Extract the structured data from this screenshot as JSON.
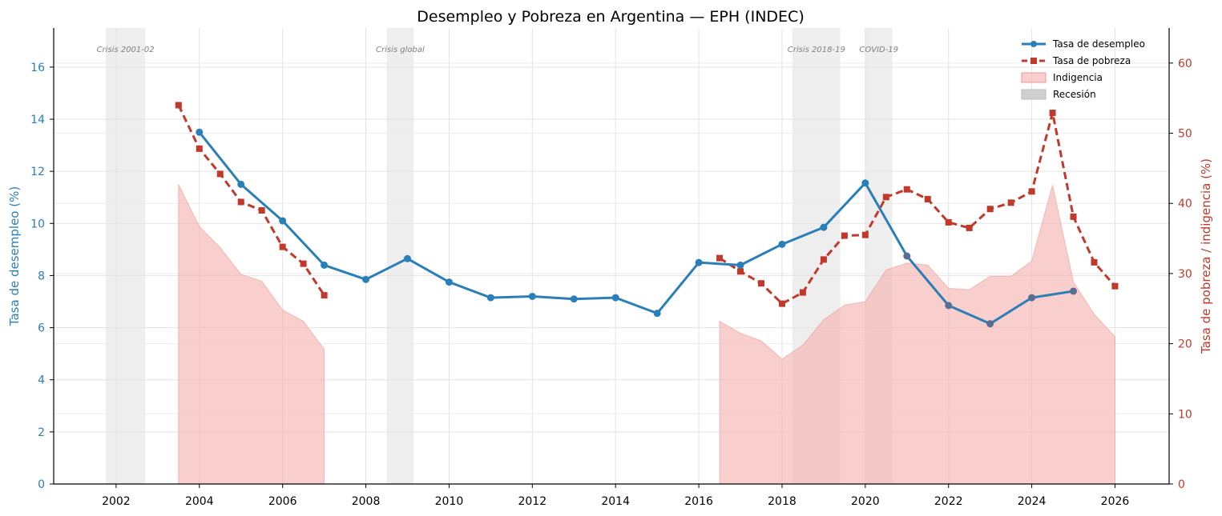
{
  "chart_data": {
    "type": "line",
    "title": "Desempleo y Pobreza en Argentina — EPH (INDEC)",
    "xlabel": "",
    "ylabel_left": "Tasa de desempleo (%)",
    "ylabel_right": "Tasa de pobreza / indigencia (%)",
    "xlim": [
      2000.5,
      2027.3
    ],
    "ylim_left": [
      0,
      17.5
    ],
    "ylim_right": [
      0,
      65
    ],
    "x_ticks": [
      2002,
      2004,
      2006,
      2008,
      2010,
      2012,
      2014,
      2016,
      2018,
      2020,
      2022,
      2024,
      2026
    ],
    "y_ticks_left": [
      0,
      2,
      4,
      6,
      8,
      10,
      12,
      14,
      16
    ],
    "y_ticks_right": [
      0,
      10,
      20,
      30,
      40,
      50,
      60
    ],
    "grid": true,
    "legend_position": "top-right",
    "colors": {
      "unemployment": "#2a7fb8",
      "unemployment_late": "#5a6e94",
      "poverty": "#c0392b",
      "indigence_fill": "#f4b6b1",
      "recession": "#d9d9d9",
      "left_axis": "#2a7fb8",
      "right_axis": "#c0392b"
    },
    "recessions": [
      {
        "label": "Crisis 2001-02",
        "start": 2001.75,
        "end": 2002.7
      },
      {
        "label": "Crisis global",
        "start": 2008.5,
        "end": 2009.15
      },
      {
        "label": "Crisis 2018-19",
        "start": 2018.25,
        "end": 2019.4
      },
      {
        "label": "COVID-19",
        "start": 2020.0,
        "end": 2020.65
      }
    ],
    "series": [
      {
        "name": "Tasa de desempleo",
        "axis": "left",
        "style": "solid-circle",
        "x": [
          2004,
          2005,
          2006,
          2007,
          2008,
          2009,
          2010,
          2011,
          2012,
          2013,
          2014,
          2015,
          2016,
          2017,
          2018,
          2019,
          2020,
          2021,
          2022,
          2023,
          2024,
          2025
        ],
        "y": [
          13.5,
          11.5,
          10.1,
          8.4,
          7.85,
          8.65,
          7.75,
          7.15,
          7.2,
          7.1,
          7.15,
          6.55,
          8.5,
          8.4,
          9.2,
          9.85,
          11.55,
          8.75,
          6.85,
          6.15,
          7.15,
          7.4
        ]
      },
      {
        "name": "Tasa de pobreza",
        "axis": "right",
        "style": "dashed-square",
        "segments": [
          {
            "x": [
              2003.5,
              2004,
              2004.5,
              2005,
              2005.5,
              2006,
              2006.5,
              2007
            ],
            "y": [
              54.0,
              47.8,
              44.2,
              40.2,
              39.0,
              33.8,
              31.4,
              26.9
            ]
          },
          {
            "x": [
              2016.5,
              2017,
              2017.5,
              2018,
              2018.5,
              2019,
              2019.5,
              2020,
              2020.5,
              2021,
              2021.5,
              2022,
              2022.5,
              2023,
              2023.5,
              2024,
              2024.5,
              2025,
              2025.5,
              2026
            ],
            "y": [
              32.2,
              30.3,
              28.6,
              25.7,
              27.3,
              32.0,
              35.4,
              35.5,
              40.9,
              42.0,
              40.6,
              37.3,
              36.5,
              39.2,
              40.1,
              41.7,
              52.9,
              38.1,
              31.6,
              28.2
            ]
          }
        ]
      },
      {
        "name": "Indigencia",
        "axis": "right",
        "style": "area",
        "segments": [
          {
            "x": [
              2003.5,
              2004,
              2004.5,
              2005,
              2005.5,
              2006,
              2006.5,
              2007
            ],
            "y": [
              42.7,
              36.7,
              33.7,
              29.9,
              28.9,
              24.8,
              23.2,
              19.2
            ]
          },
          {
            "x": [
              2016.5,
              2017,
              2017.5,
              2018,
              2018.5,
              2019,
              2019.5,
              2020,
              2020.5,
              2021,
              2021.5,
              2022,
              2022.5,
              2023,
              2023.5,
              2024,
              2024.5,
              2025,
              2025.5,
              2026
            ],
            "y": [
              23.2,
              21.5,
              20.4,
              17.8,
              19.8,
              23.4,
              25.5,
              26.0,
              30.5,
              31.5,
              31.2,
              27.9,
              27.7,
              29.6,
              29.6,
              31.8,
              42.6,
              28.8,
              24.2,
              21.0
            ]
          }
        ]
      },
      {
        "name": "Recesión",
        "axis": "none",
        "style": "band"
      }
    ]
  }
}
